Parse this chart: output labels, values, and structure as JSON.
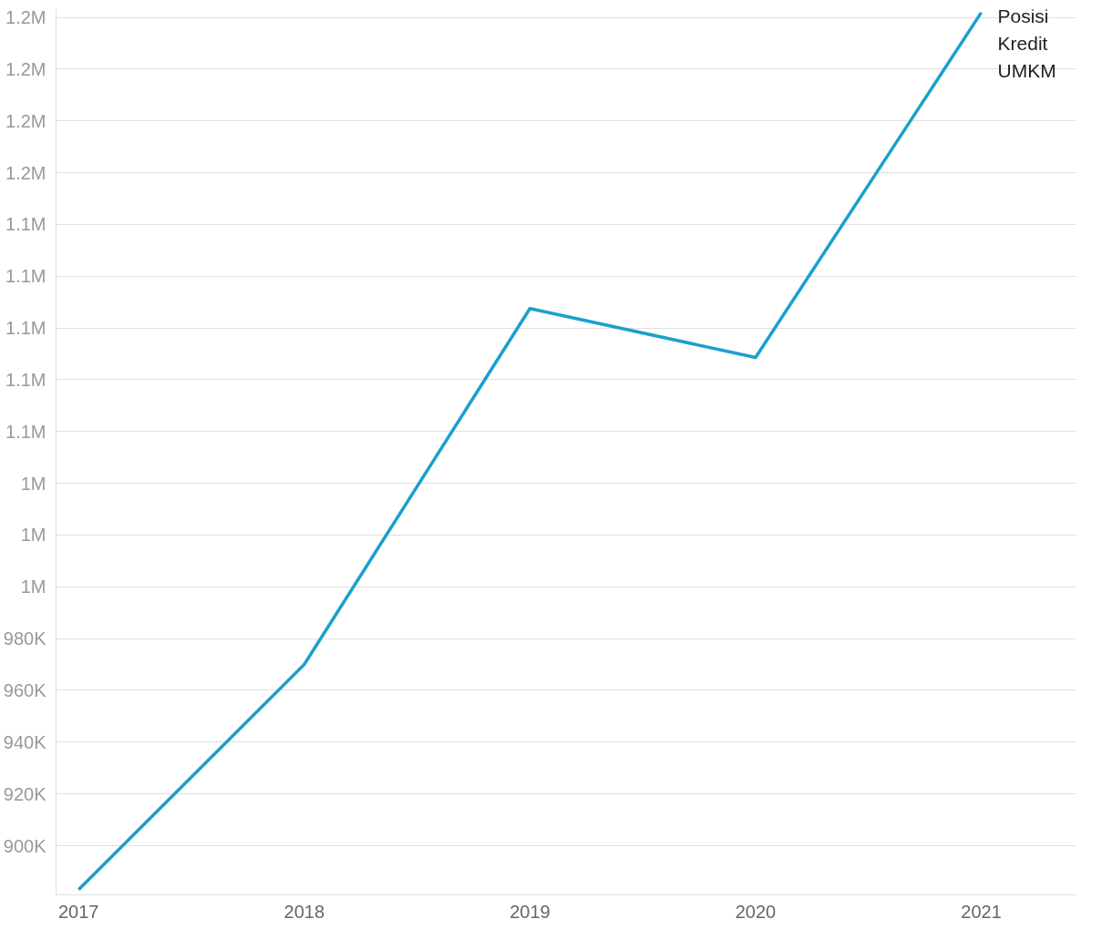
{
  "chart_data": {
    "type": "line",
    "x": [
      2017,
      2018,
      2019,
      2020,
      2021
    ],
    "series": [
      {
        "name": "Posisi Kredit UMKM",
        "color": "#1aa0cc",
        "values": [
          883000,
          970000,
          1107500,
          1088600,
          1221800
        ]
      }
    ],
    "xlim": [
      2016.9,
      2021.42
    ],
    "xticks": [
      2017,
      2018,
      2019,
      2020,
      2021
    ],
    "ylim": [
      881000,
      1223000
    ],
    "yticks": [
      {
        "value": 900000,
        "label": "900K"
      },
      {
        "value": 920000,
        "label": "920K"
      },
      {
        "value": 940000,
        "label": "940K"
      },
      {
        "value": 960000,
        "label": "960K"
      },
      {
        "value": 980000,
        "label": "980K"
      },
      {
        "value": 1000000,
        "label": "1M"
      },
      {
        "value": 1020000,
        "label": "1M"
      },
      {
        "value": 1040000,
        "label": "1M"
      },
      {
        "value": 1060000,
        "label": "1.1M"
      },
      {
        "value": 1080000,
        "label": "1.1M"
      },
      {
        "value": 1100000,
        "label": "1.1M"
      },
      {
        "value": 1120000,
        "label": "1.1M"
      },
      {
        "value": 1140000,
        "label": "1.1M"
      },
      {
        "value": 1160000,
        "label": "1.2M"
      },
      {
        "value": 1180000,
        "label": "1.2M"
      },
      {
        "value": 1200000,
        "label": "1.2M"
      },
      {
        "value": 1220000,
        "label": "1.2M"
      }
    ],
    "grid": "y",
    "legend": false,
    "line_style": "solid"
  }
}
